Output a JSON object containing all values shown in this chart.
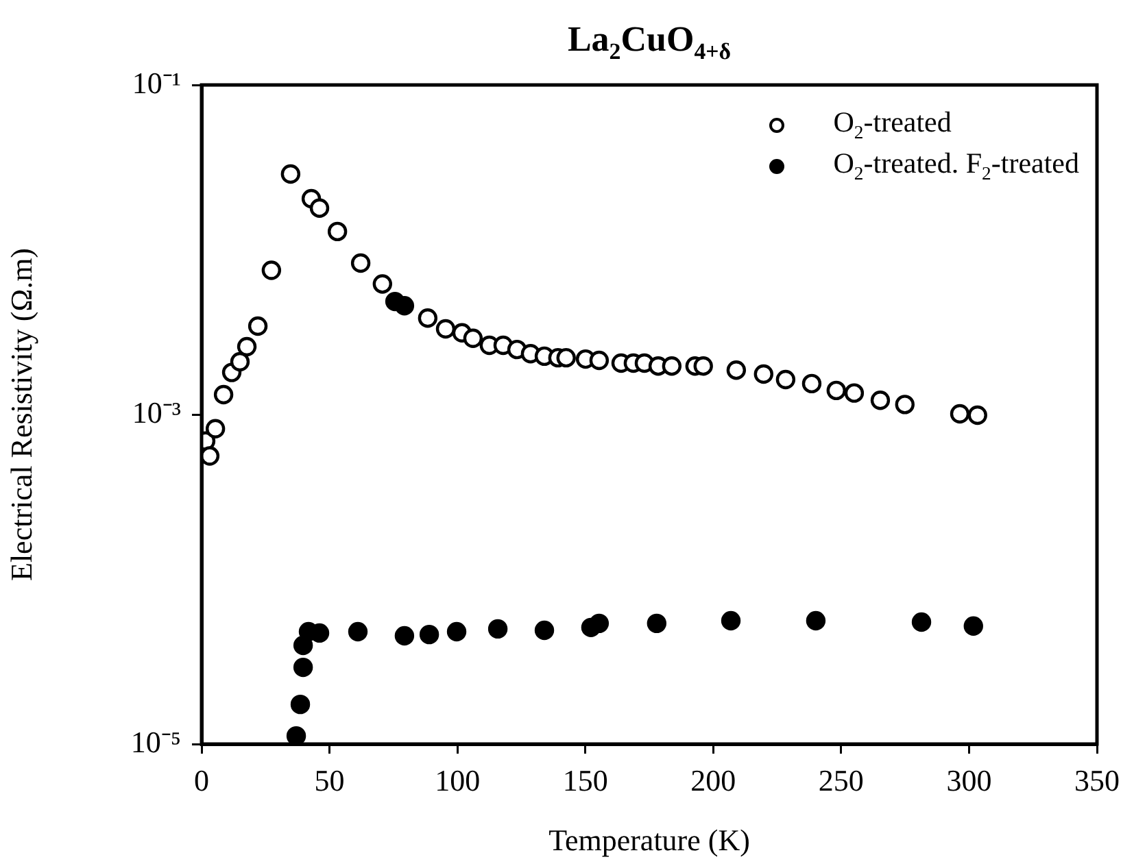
{
  "chart_data": {
    "type": "scatter",
    "title": "La$_{2}$CuO$_{4+δ}$",
    "xlabel": "Temperature (K)",
    "ylabel": "Electrical Resistivity (Ω.m)",
    "xlim": [
      0,
      350
    ],
    "xticks": [
      0,
      50,
      100,
      150,
      200,
      250,
      300,
      350
    ],
    "ylim": [
      1e-05,
      0.1
    ],
    "yticks": [
      {
        "value": 0.1,
        "label": "10⁻¹"
      },
      {
        "value": 0.001,
        "label": "10⁻³"
      },
      {
        "value": 1e-05,
        "label": "10⁻⁵"
      }
    ],
    "log": "y",
    "grid": false,
    "legend": "top right",
    "marker": "circle",
    "series": [
      {
        "name": "O$_{2}$-treated",
        "color": "#ffffff",
        "x": [
          1.6,
          3.2,
          5.4,
          8.6,
          11.8,
          15.0,
          17.7,
          22.0,
          27.3,
          34.8,
          42.9,
          46.1,
          53.1,
          62.2,
          70.7,
          88.4,
          95.4,
          101.8,
          106.1,
          112.5,
          117.9,
          123.3,
          128.6,
          134.0,
          139.3,
          142.5,
          150.1,
          155.4,
          164.0,
          168.8,
          173.1,
          178.5,
          183.8,
          192.9,
          196.1,
          209.0,
          219.7,
          228.3,
          238.5,
          248.1,
          255.1,
          265.3,
          274.9,
          296.4,
          303.3
        ],
        "values": [
          0.00069,
          0.00056,
          0.00082,
          0.00132,
          0.0018,
          0.00209,
          0.00258,
          0.00344,
          0.0075,
          0.0288,
          0.0204,
          0.0179,
          0.0129,
          0.0083,
          0.0062,
          0.00385,
          0.00331,
          0.00313,
          0.0029,
          0.00263,
          0.00263,
          0.00248,
          0.00234,
          0.00226,
          0.00221,
          0.00221,
          0.00217,
          0.00213,
          0.00205,
          0.00205,
          0.00205,
          0.00197,
          0.00197,
          0.00197,
          0.00197,
          0.00186,
          0.00176,
          0.00163,
          0.00154,
          0.0014,
          0.00135,
          0.00122,
          0.00115,
          0.00101,
          0.00099
        ]
      },
      {
        "name": "O$_{2}$-treated. F$_{2}$-treated",
        "color": "#000000",
        "x": [
          37.0,
          38.6,
          39.7,
          39.7,
          41.8,
          46.1,
          61.1,
          79.3,
          89.0,
          99.7,
          115.8,
          134.0,
          152.2,
          155.4,
          177.9,
          206.9,
          240.1,
          281.4,
          301.7,
          75.6,
          79.3
        ],
        "values": [
          1.12e-05,
          1.74e-05,
          2.92e-05,
          3.97e-05,
          4.81e-05,
          4.72e-05,
          4.81e-05,
          4.54e-05,
          4.62e-05,
          4.81e-05,
          5e-05,
          4.9e-05,
          5.1e-05,
          5.4e-05,
          5.4e-05,
          5.6e-05,
          5.6e-05,
          5.5e-05,
          5.2e-05,
          0.00485,
          0.00457
        ]
      }
    ]
  }
}
